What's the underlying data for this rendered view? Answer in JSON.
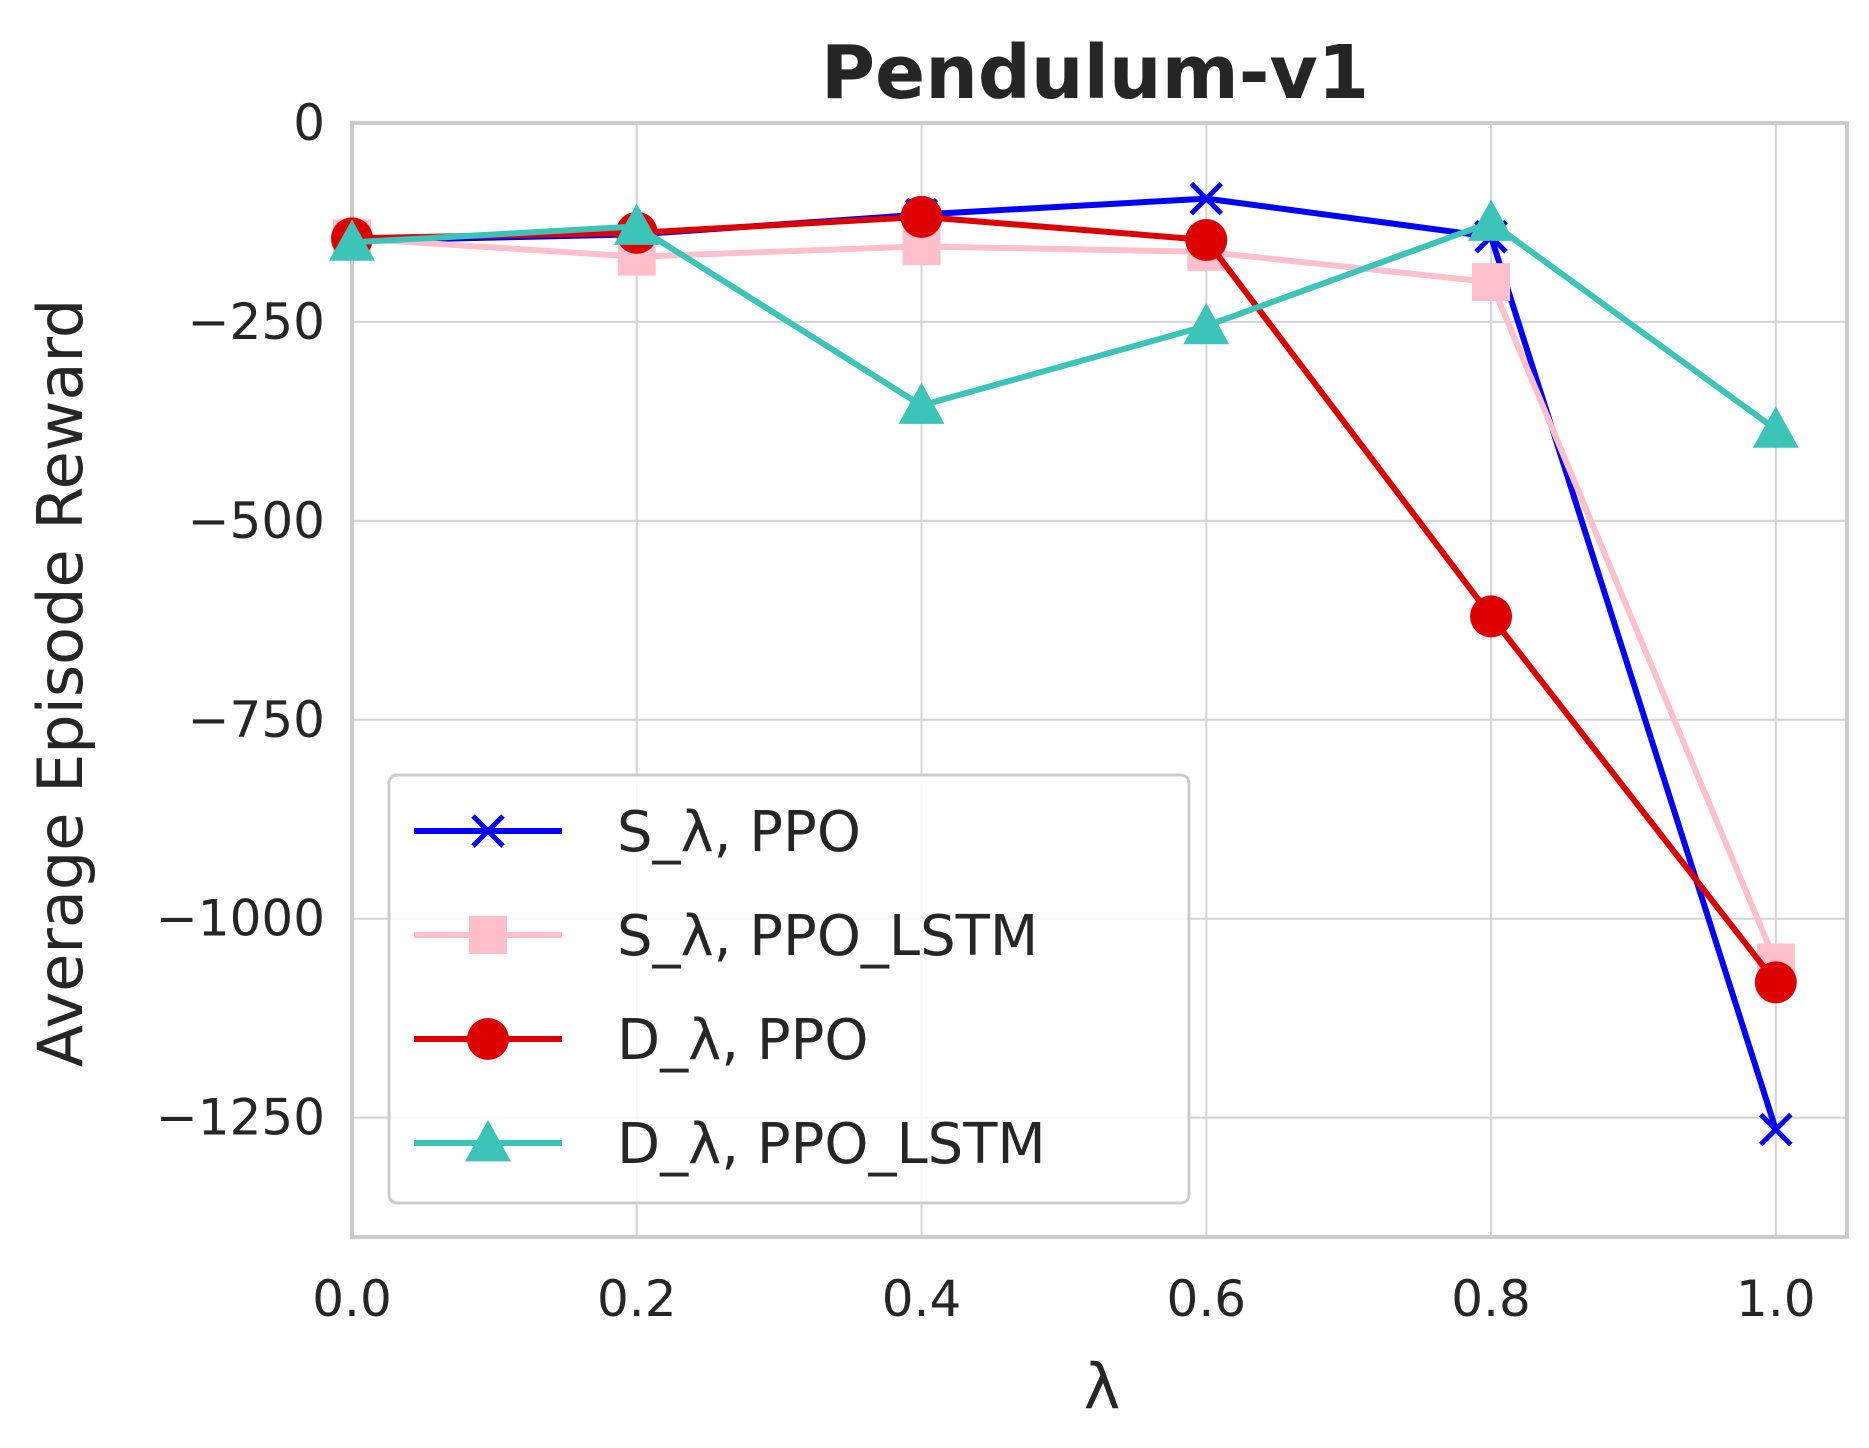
{
  "chart_data": {
    "type": "line",
    "title": "Pendulum-v1",
    "xlabel": "λ",
    "ylabel": "Average Episode Reward",
    "xlim": [
      0.0,
      1.05
    ],
    "ylim": [
      -1400,
      0
    ],
    "x": [
      0.0,
      0.2,
      0.4,
      0.6,
      0.8,
      1.0
    ],
    "xticks": [
      "0.0",
      "0.2",
      "0.4",
      "0.6",
      "0.8",
      "1.0"
    ],
    "yticks": [
      0,
      -250,
      -500,
      -750,
      -1000,
      -1250
    ],
    "ytick_labels": [
      "0",
      "−250",
      "−500",
      "−750",
      "−1000",
      "−1250"
    ],
    "grid": true,
    "legend_position": "lower-left",
    "series": [
      {
        "name": "S_λ, PPO",
        "color": "#0000ff",
        "marker": "x",
        "values": [
          -148,
          -140,
          -115,
          -95,
          -143,
          -1265
        ]
      },
      {
        "name": "S_λ, PPO_LSTM",
        "color": "#ffc0cb",
        "marker": "square",
        "values": [
          -145,
          -168,
          -155,
          -162,
          -200,
          -1055
        ]
      },
      {
        "name": "D_λ, PPO",
        "color": "#dd0000",
        "marker": "circle",
        "values": [
          -145,
          -138,
          -118,
          -147,
          -620,
          -1080
        ]
      },
      {
        "name": "D_λ, PPO_LSTM",
        "color": "#3cc4b8",
        "marker": "triangle",
        "values": [
          -150,
          -130,
          -355,
          -255,
          -125,
          -385
        ]
      }
    ]
  }
}
